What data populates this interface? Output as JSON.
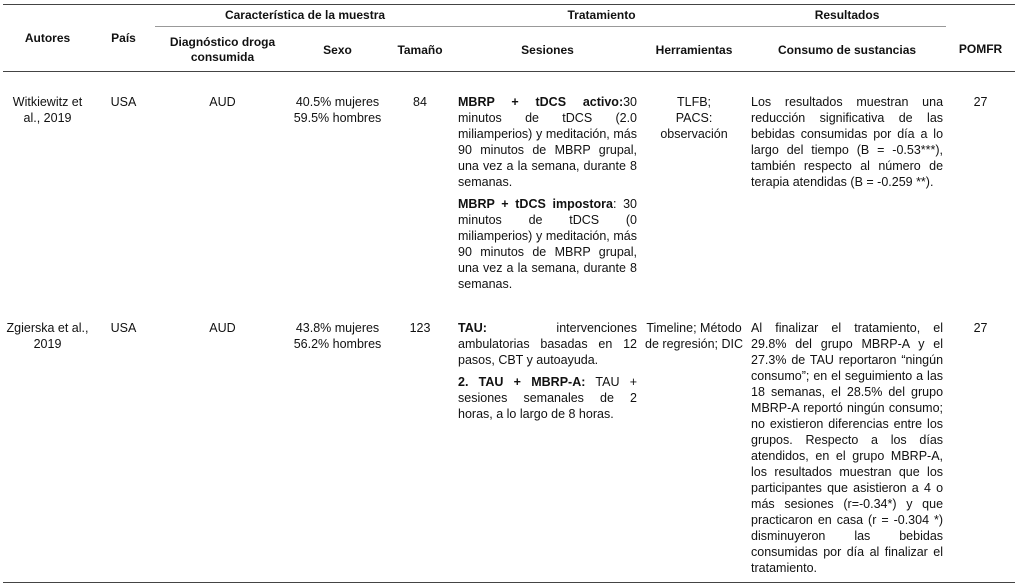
{
  "table": {
    "header_groups": [
      "Característica de la muestra",
      "Tratamiento",
      "Resultados"
    ],
    "columns": [
      "Autores",
      "País",
      "Diagnóstico droga consumida",
      "Sexo",
      "Tamaño",
      "Sesiones",
      "Herramientas",
      "Consumo de sustancias",
      "POMFR"
    ],
    "rows": [
      {
        "autores": "Witkiewitz et al., 2019",
        "pais": "USA",
        "diagnostico": "AUD",
        "sexo": [
          "40.5% mujeres",
          "59.5% hombres"
        ],
        "tamano": 84,
        "sesiones": [
          {
            "label": "MBRP + tDCS activo:",
            "text": "30 minutos de tDCS (2.0 miliamperios) y meditación, más 90 minutos de MBRP grupal, una vez a la semana, durante 8 semanas."
          },
          {
            "label": "MBRP + tDCS impostora",
            "text": ": 30 minutos de tDCS (0 miliamperios) y meditación, más 90 minutos de MBRP grupal, una vez a la semana, durante 8 semanas."
          }
        ],
        "herramientas": [
          "TLFB;",
          "PACS:",
          "observación"
        ],
        "consumo": "Los resultados muestran una reducción significativa de las bebidas consumidas por día a lo largo del tiempo (B = -0.53***), también respecto al número de terapia atendidas (B = -0.259 **).",
        "pomfr": 27
      },
      {
        "autores": "Zgierska et al., 2019",
        "pais": "USA",
        "diagnostico": "AUD",
        "sexo": [
          "43.8% mujeres",
          "56.2% hombres"
        ],
        "tamano": 123,
        "sesiones": [
          {
            "label": "TAU:",
            "text": " intervenciones ambulatorias basadas en 12 pasos, CBT y autoayuda."
          },
          {
            "label": "2. TAU + MBRP-A:",
            "text": " TAU + sesiones semanales de 2 horas, a lo largo de 8 horas."
          }
        ],
        "herramientas": [
          "Timeline; Método de regresión; DIC"
        ],
        "consumo": "Al finalizar el tratamiento, el 29.8% del grupo MBRP-A y el 27.3% de TAU reportaron “ningún consumo”; en el seguimiento a las 18 semanas, el 28.5% del grupo MBRP-A reportó ningún consumo; no existieron diferencias entre los grupos. Respecto a los días atendidos, en el grupo MBRP-A, los resultados muestran que los participantes que asistieron a 4 o más sesiones (r=-0.34*) y que practicaron en casa (r = -0.304 *) disminuyeron las bebidas consumidas por día al finalizar el tratamiento.",
        "pomfr": 27
      }
    ]
  }
}
